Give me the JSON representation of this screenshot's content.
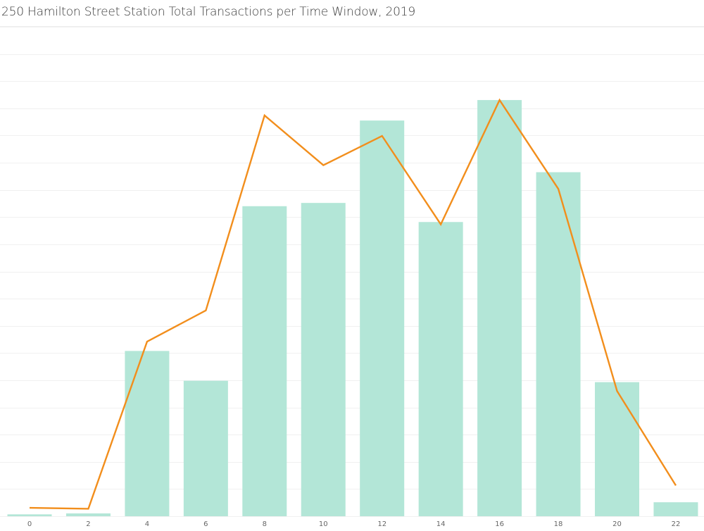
{
  "chart_data": {
    "type": "bar",
    "title": "250 Hamilton Street Station Total Transactions per Time Window, 2019",
    "xlabel": "",
    "ylabel": "",
    "categories": [
      "0",
      "2",
      "4",
      "6",
      "8",
      "10",
      "12",
      "14",
      "16",
      "18",
      "20",
      "22"
    ],
    "series": [
      {
        "type": "bar",
        "values": [
          0.4,
          0.6,
          35.5,
          29.1,
          66.6,
          67.3,
          85.0,
          63.2,
          89.4,
          73.9,
          28.8,
          3.0
        ],
        "color": "#b3e6d7"
      },
      {
        "type": "line",
        "values": [
          1.8,
          1.6,
          37.5,
          44.2,
          86.1,
          75.4,
          81.7,
          62.7,
          89.4,
          70.3,
          26.9,
          6.6
        ],
        "color": "#f28e1c"
      }
    ],
    "ylim": [
      0,
      100
    ],
    "grid": true,
    "legend": "none"
  }
}
